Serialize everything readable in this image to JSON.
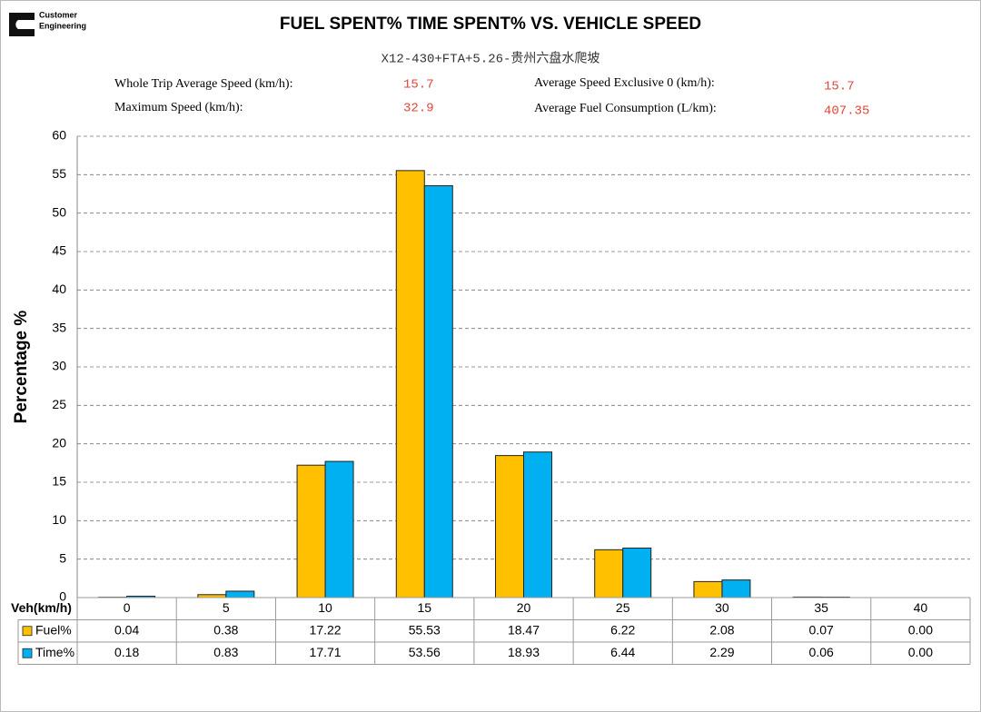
{
  "chart_data": {
    "type": "bar",
    "brand": [
      "Customer",
      "Engineering"
    ],
    "title": "FUEL SPENT% TIME SPENT% VS. VEHICLE SPEED",
    "subtitle": "X12-430+FTA+5.26-贵州六盘水爬坡",
    "stats": [
      {
        "label": "Whole Trip Average Speed (km/h):",
        "value": 15.7
      },
      {
        "label": "Maximum Speed (km/h):",
        "value": 32.9
      },
      {
        "label": "Average Speed Exclusive 0 (km/h):",
        "value": 15.7
      },
      {
        "label": "Average Fuel Consumption (L/km):",
        "value": 407.35
      }
    ],
    "y_label": "Percentage %",
    "table_header": "Veh(km/h)",
    "categories": [
      "0",
      "5",
      "10",
      "15",
      "20",
      "25",
      "30",
      "35",
      "40"
    ],
    "series": [
      {
        "name": "Fuel%",
        "color": "#ffc000",
        "values": [
          0.04,
          0.38,
          17.22,
          55.53,
          18.47,
          6.22,
          2.08,
          0.07,
          0
        ],
        "value_labels": [
          "0.04",
          "0.38",
          "17.22",
          "55.53",
          "18.47",
          "6.22",
          "2.08",
          "0.07",
          "0.00"
        ]
      },
      {
        "name": "Time%",
        "color": "#00b0f0",
        "values": [
          0.18,
          0.83,
          17.71,
          53.56,
          18.93,
          6.44,
          2.29,
          0.06,
          0
        ],
        "value_labels": [
          "0.18",
          "0.83",
          "17.71",
          "53.56",
          "18.93",
          "6.44",
          "2.29",
          "0.06",
          "0.00"
        ]
      }
    ],
    "ylim": [
      0,
      60
    ],
    "yticks": [
      0,
      5,
      10,
      15,
      20,
      25,
      30,
      35,
      40,
      45,
      50,
      55,
      60
    ],
    "grid": true
  }
}
